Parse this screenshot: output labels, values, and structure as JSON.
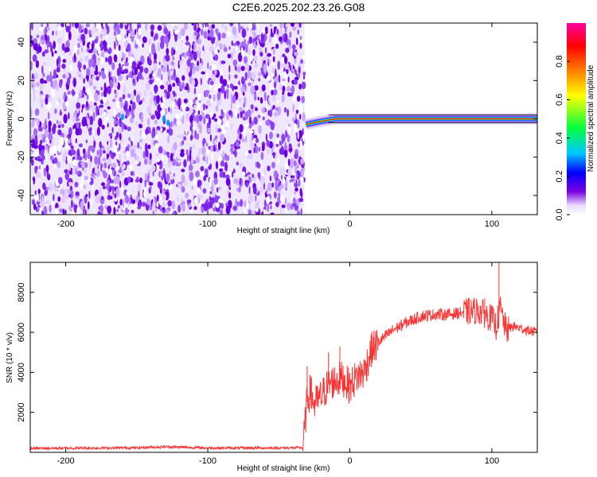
{
  "chart_data": [
    {
      "type": "heatmap",
      "title": "C2E6.2025.202.23.26.G08",
      "xlabel": "Height of straight line (km)",
      "ylabel": "Frequency (Hz)",
      "xlim": [
        -225,
        132
      ],
      "ylim": [
        -50,
        50
      ],
      "xticks": [
        -200,
        -100,
        0,
        100
      ],
      "yticks": [
        -40,
        -20,
        0,
        20,
        40
      ],
      "noise_region_x": [
        -225,
        -32
      ],
      "signal_line": {
        "frequency": 0,
        "x_start": -32,
        "x_end": 132,
        "points": [
          {
            "x": -31,
            "y": -3
          },
          {
            "x": -25,
            "y": -2
          },
          {
            "x": -18,
            "y": -1
          },
          {
            "x": -10,
            "y": 0
          },
          {
            "x": 0,
            "y": 0
          },
          {
            "x": 60,
            "y": 0
          },
          {
            "x": 132,
            "y": 0
          }
        ]
      },
      "colorbar": {
        "label": "Normalized spectral amplitude",
        "range": [
          0,
          1
        ],
        "ticks": [
          "0.0",
          "0.2",
          "0.4",
          "0.6",
          "0.8"
        ],
        "colormap": [
          "#ffffff",
          "#e8d8ff",
          "#7a00e0",
          "#0000ff",
          "#00c8ff",
          "#00ff40",
          "#ffff00",
          "#ff8000",
          "#ff0000",
          "#ff00a0"
        ]
      },
      "grid": false
    },
    {
      "type": "line",
      "xlabel": "Height of straight line (km)",
      "ylabel": "SNR (10 * v/v)",
      "xlim": [
        -225,
        132
      ],
      "ylim": [
        0,
        9500
      ],
      "xticks": [
        -200,
        -100,
        0,
        100
      ],
      "yticks": [
        2000,
        4000,
        6000,
        8000
      ],
      "line_color": "#ff3030",
      "x": [
        -225,
        -200,
        -175,
        -150,
        -130,
        -100,
        -75,
        -50,
        -33,
        -30,
        -28,
        -25,
        -20,
        -15,
        -10,
        -5,
        0,
        5,
        10,
        15,
        20,
        30,
        40,
        50,
        60,
        70,
        80,
        90,
        95,
        100,
        103,
        106,
        110,
        115,
        120,
        125,
        132
      ],
      "y": [
        200,
        210,
        220,
        230,
        280,
        220,
        220,
        220,
        230,
        2600,
        3000,
        2400,
        2800,
        3400,
        3600,
        3700,
        3300,
        3800,
        4000,
        5100,
        5500,
        6100,
        6500,
        6800,
        6900,
        6900,
        7000,
        7100,
        6900,
        6700,
        6300,
        7200,
        6100,
        6300,
        6200,
        6100,
        6000
      ],
      "spikes": [
        {
          "x": -30,
          "y": 4300
        },
        {
          "x": -27,
          "y": 3800
        },
        {
          "x": -15,
          "y": 5000
        },
        {
          "x": -7,
          "y": 5300
        },
        {
          "x": 90,
          "y": 7400
        },
        {
          "x": 95,
          "y": 7700
        },
        {
          "x": 105,
          "y": 9500
        }
      ],
      "grid": false
    }
  ]
}
